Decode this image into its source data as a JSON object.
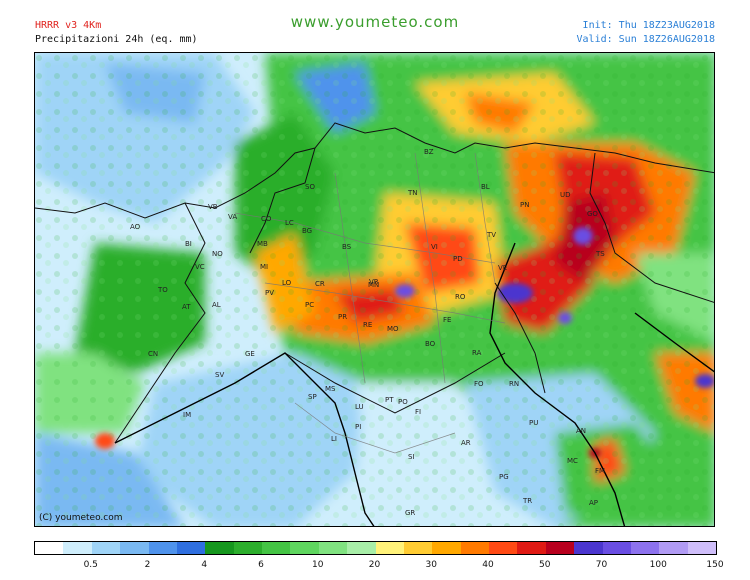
{
  "header": {
    "model": "HRRR v3 4Km",
    "product": "Precipitazioni 24h (eq. mm)",
    "site": "www.youmeteo.com",
    "init": "Init: Thu 18Z23AUG2018",
    "valid": "Valid: Sun 18Z26AUG2018"
  },
  "map": {
    "copyright": "(C) youmeteo.com",
    "cities": [
      "AO",
      "VB",
      "VA",
      "CO",
      "LC",
      "SO",
      "BZ",
      "TN",
      "BL",
      "UD",
      "PN",
      "GO",
      "TS",
      "BI",
      "NO",
      "MB",
      "BG",
      "BS",
      "VR",
      "VI",
      "TV",
      "PD",
      "VE",
      "TO",
      "VC",
      "MI",
      "LO",
      "CR",
      "MN",
      "RO",
      "FE",
      "AT",
      "AL",
      "PV",
      "PC",
      "PR",
      "RE",
      "MO",
      "BO",
      "RA",
      "FO",
      "RN",
      "CN",
      "GE",
      "SV",
      "IM",
      "SP",
      "MS",
      "LU",
      "PT",
      "PO",
      "FI",
      "PI",
      "LI",
      "AR",
      "SI",
      "PG",
      "AN",
      "MC",
      "FM",
      "AP",
      "GR",
      "PU",
      "TR"
    ]
  },
  "legend": {
    "colors": [
      "#ffffff",
      "#cfeefc",
      "#9fd4f7",
      "#7ab9f2",
      "#4f93ec",
      "#2f6fe0",
      "#16971e",
      "#2cae2c",
      "#44c444",
      "#5fd65f",
      "#80e280",
      "#a8eea8",
      "#fff27a",
      "#ffcc33",
      "#ffa800",
      "#ff7a00",
      "#ff4a14",
      "#e01a14",
      "#b8001e",
      "#4b36cf",
      "#6a4ee3",
      "#8d72ee",
      "#b19bf4",
      "#cfbefa"
    ],
    "labels": [
      {
        "text": "0.5",
        "pos": 2
      },
      {
        "text": "2",
        "pos": 4
      },
      {
        "text": "4",
        "pos": 6
      },
      {
        "text": "6",
        "pos": 8
      },
      {
        "text": "10",
        "pos": 10
      },
      {
        "text": "20",
        "pos": 12
      },
      {
        "text": "30",
        "pos": 14
      },
      {
        "text": "40",
        "pos": 16
      },
      {
        "text": "50",
        "pos": 18
      },
      {
        "text": "70",
        "pos": 20
      },
      {
        "text": "100",
        "pos": 22
      },
      {
        "text": "150",
        "pos": 24
      }
    ]
  }
}
